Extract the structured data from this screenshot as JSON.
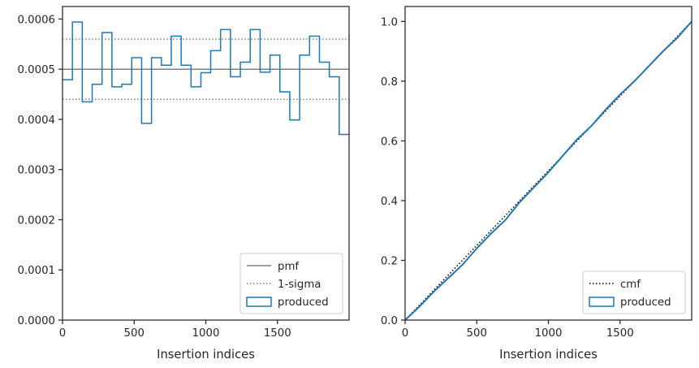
{
  "chart_data": [
    {
      "type": "line",
      "xlabel": "Insertion indices",
      "ylabel": "",
      "xlim": [
        0,
        2000
      ],
      "ylim": [
        0,
        0.000625
      ],
      "xticks": [
        0,
        500,
        1000,
        1500
      ],
      "xtick_labels": [
        "0",
        "500",
        "1000",
        "1500"
      ],
      "yticks": [
        0,
        0.0001,
        0.0002,
        0.0003,
        0.0004,
        0.0005,
        0.0006
      ],
      "ytick_labels": [
        "0.0000",
        "0.0001",
        "0.0002",
        "0.0003",
        "0.0004",
        "0.0005",
        "0.0006"
      ],
      "grid": false,
      "legend_position": "lower right",
      "pmf": {
        "name": "pmf",
        "y": 0.0005,
        "color": "#808080",
        "style": "solid"
      },
      "sigma": {
        "name": "1-sigma",
        "y": [
          0.00044,
          0.00056
        ],
        "color": "#808080",
        "style": "dotted"
      },
      "series": [
        {
          "name": "produced",
          "type": "step-histogram",
          "color": "#1f77b4",
          "bin_edges": [
            0,
            69,
            138,
            207,
            276,
            345,
            414,
            483,
            552,
            621,
            690,
            759,
            828,
            897,
            966,
            1034,
            1103,
            1172,
            1241,
            1310,
            1379,
            1448,
            1517,
            1586,
            1655,
            1724,
            1793,
            1862,
            1931,
            2000
          ],
          "values": [
            0.000479,
            0.000594,
            0.000435,
            0.00047,
            0.000573,
            0.000465,
            0.00047,
            0.000523,
            0.000392,
            0.000523,
            0.000508,
            0.000566,
            0.000508,
            0.000465,
            0.000493,
            0.000537,
            0.000579,
            0.000485,
            0.000514,
            0.000579,
            0.000494,
            0.000528,
            0.000455,
            0.000399,
            0.000528,
            0.000566,
            0.000514,
            0.000485,
            0.00037
          ]
        }
      ]
    },
    {
      "type": "line",
      "xlabel": "Insertion indices",
      "ylabel": "",
      "xlim": [
        0,
        2000
      ],
      "ylim": [
        0,
        1.05
      ],
      "xticks": [
        0,
        500,
        1000,
        1500
      ],
      "xtick_labels": [
        "0",
        "500",
        "1000",
        "1500"
      ],
      "yticks": [
        0,
        0.2,
        0.4,
        0.6,
        0.8,
        1.0
      ],
      "ytick_labels": [
        "0.0",
        "0.2",
        "0.4",
        "0.6",
        "0.8",
        "1.0"
      ],
      "grid": false,
      "legend_position": "lower right",
      "series": [
        {
          "name": "cmf",
          "color": "#000000",
          "style": "dotted",
          "x": [
            0,
            2000
          ],
          "y": [
            0,
            1.0
          ]
        },
        {
          "name": "produced",
          "color": "#1f77b4",
          "style": "solid",
          "x": [
            0,
            100,
            200,
            300,
            400,
            500,
            600,
            700,
            800,
            900,
            1000,
            1100,
            1200,
            1300,
            1400,
            1500,
            1600,
            1700,
            1800,
            1900,
            2000
          ],
          "y": [
            0,
            0.045,
            0.095,
            0.14,
            0.185,
            0.24,
            0.29,
            0.335,
            0.395,
            0.445,
            0.495,
            0.55,
            0.605,
            0.65,
            0.705,
            0.755,
            0.8,
            0.85,
            0.9,
            0.945,
            1.0
          ]
        }
      ]
    }
  ]
}
